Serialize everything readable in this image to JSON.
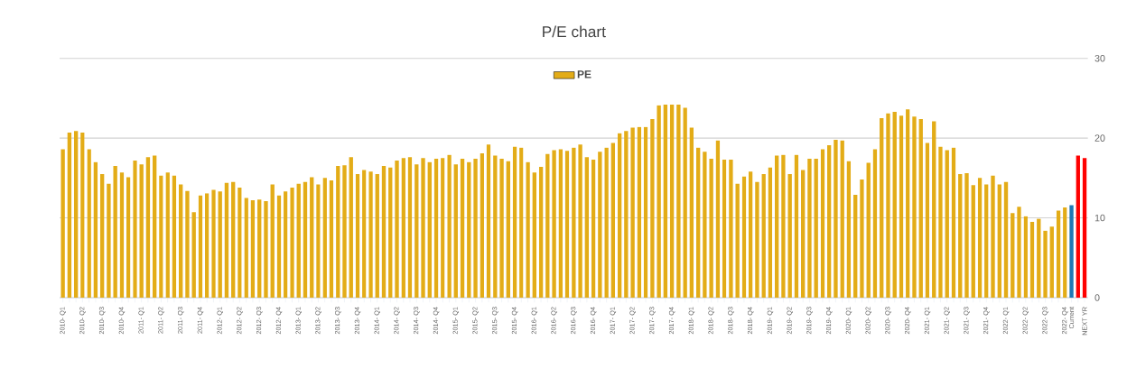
{
  "chart_data": {
    "type": "bar",
    "title": "P/E chart",
    "legend": "top",
    "grid": "y",
    "ylim": [
      0,
      30
    ],
    "yticks": [
      0,
      10,
      20,
      30
    ],
    "categories": [
      "2010- Q1",
      null,
      null,
      "2010- Q2",
      null,
      null,
      "2010- Q3",
      null,
      null,
      "2010- Q4",
      null,
      null,
      "2011- Q1",
      null,
      null,
      "2011- Q2",
      null,
      null,
      "2011- Q3",
      null,
      null,
      "2011- Q4",
      null,
      null,
      "2012- Q1",
      null,
      null,
      "2012- Q2",
      null,
      null,
      "2012- Q3",
      null,
      null,
      "2012- Q4",
      null,
      null,
      "2013- Q1",
      null,
      null,
      "2013- Q2",
      null,
      null,
      "2013- Q3",
      null,
      null,
      "2013- Q4",
      null,
      null,
      "2014- Q1",
      null,
      null,
      "2014- Q2",
      null,
      null,
      "2014- Q3",
      null,
      null,
      "2014- Q4",
      null,
      null,
      "2015- Q1",
      null,
      null,
      "2015- Q2",
      null,
      null,
      "2015- Q3",
      null,
      null,
      "2015- Q4",
      null,
      null,
      "2016- Q1",
      null,
      null,
      "2016- Q2",
      null,
      null,
      "2016- Q3",
      null,
      null,
      "2016- Q4",
      null,
      null,
      "2017- Q1",
      null,
      null,
      "2017- Q2",
      null,
      null,
      "2017- Q3",
      null,
      null,
      "2017- Q4",
      null,
      null,
      "2018- Q1",
      null,
      null,
      "2018- Q2",
      null,
      null,
      "2018- Q3",
      null,
      null,
      "2018- Q4",
      null,
      null,
      "2019- Q1",
      null,
      null,
      "2019- Q2",
      null,
      null,
      "2019- Q3",
      null,
      null,
      "2019- Q4",
      null,
      null,
      "2020- Q1",
      null,
      null,
      "2020- Q2",
      null,
      null,
      "2020- Q3",
      null,
      null,
      "2020- Q4",
      null,
      null,
      "2021- Q1",
      null,
      null,
      "2021- Q2",
      null,
      null,
      "2021- Q3",
      null,
      null,
      "2021- Q4",
      null,
      null,
      "2022- Q1",
      null,
      null,
      "2022- Q2",
      null,
      null,
      "2022- Q3",
      null,
      null,
      "2022- Q4",
      "Current",
      null,
      "NEXT YR"
    ],
    "series": [
      {
        "name": "PE",
        "color": "#e3ac17",
        "values": [
          18.6,
          20.7,
          20.9,
          20.7,
          18.6,
          17.0,
          15.5,
          14.3,
          16.5,
          15.7,
          15.1,
          17.2,
          16.7,
          17.6,
          17.8,
          15.3,
          15.7,
          15.3,
          14.2,
          13.4,
          10.7,
          12.8,
          13.1,
          13.5,
          13.3,
          14.4,
          14.5,
          13.8,
          12.5,
          12.2,
          12.3,
          12.1,
          14.2,
          12.8,
          13.3,
          13.8,
          14.3,
          14.5,
          15.1,
          14.2,
          15.0,
          14.7,
          16.5,
          16.6,
          17.6,
          15.5,
          16.0,
          15.8,
          15.5,
          16.5,
          16.3,
          17.2,
          17.5,
          17.6,
          16.7,
          17.5,
          17.0,
          17.4,
          17.5,
          17.9,
          16.7,
          17.4,
          17.0,
          17.4,
          18.1,
          19.2,
          17.8,
          17.4,
          17.1,
          18.9,
          18.8,
          17.0,
          15.7,
          16.4,
          18.0,
          18.5,
          18.6,
          18.4,
          18.8,
          19.2,
          17.6,
          17.3,
          18.3,
          18.8,
          19.4,
          20.6,
          20.9,
          21.3,
          21.4,
          21.4,
          22.4,
          24.1,
          24.2,
          24.2,
          24.2,
          23.8,
          21.3,
          18.8,
          18.3,
          17.4,
          19.7,
          17.3,
          17.3,
          14.3,
          15.2,
          15.8,
          14.5,
          15.5,
          16.3,
          17.8,
          17.9,
          15.5,
          17.9,
          16.0,
          17.4,
          17.4,
          18.6,
          19.1,
          19.8,
          19.7,
          17.1,
          12.9,
          14.8,
          16.9,
          18.6,
          22.5,
          23.1,
          23.3,
          22.8,
          23.6,
          22.7,
          22.4,
          19.4,
          22.1,
          18.9,
          18.5,
          18.8,
          15.5,
          15.6,
          14.1,
          15.0,
          14.2,
          15.3,
          14.2,
          14.5,
          10.6,
          11.4,
          10.2,
          9.5,
          9.9,
          8.4,
          8.9,
          10.9,
          11.3,
          11.6,
          17.8,
          17.5
        ],
        "colors": [
          "#e3ac17",
          "#e3ac17",
          "#e3ac17",
          "#e3ac17",
          "#e3ac17",
          "#e3ac17",
          "#e3ac17",
          "#e3ac17",
          "#e3ac17",
          "#e3ac17",
          "#e3ac17",
          "#e3ac17",
          "#e3ac17",
          "#e3ac17",
          "#e3ac17",
          "#e3ac17",
          "#e3ac17",
          "#e3ac17",
          "#e3ac17",
          "#e3ac17",
          "#e3ac17",
          "#e3ac17",
          "#e3ac17",
          "#e3ac17",
          "#e3ac17",
          "#e3ac17",
          "#e3ac17",
          "#e3ac17",
          "#e3ac17",
          "#e3ac17",
          "#e3ac17",
          "#e3ac17",
          "#e3ac17",
          "#e3ac17",
          "#e3ac17",
          "#e3ac17",
          "#e3ac17",
          "#e3ac17",
          "#e3ac17",
          "#e3ac17",
          "#e3ac17",
          "#e3ac17",
          "#e3ac17",
          "#e3ac17",
          "#e3ac17",
          "#e3ac17",
          "#e3ac17",
          "#e3ac17",
          "#e3ac17",
          "#e3ac17",
          "#e3ac17",
          "#e3ac17",
          "#e3ac17",
          "#e3ac17",
          "#e3ac17",
          "#e3ac17",
          "#e3ac17",
          "#e3ac17",
          "#e3ac17",
          "#e3ac17",
          "#e3ac17",
          "#e3ac17",
          "#e3ac17",
          "#e3ac17",
          "#e3ac17",
          "#e3ac17",
          "#e3ac17",
          "#e3ac17",
          "#e3ac17",
          "#e3ac17",
          "#e3ac17",
          "#e3ac17",
          "#e3ac17",
          "#e3ac17",
          "#e3ac17",
          "#e3ac17",
          "#e3ac17",
          "#e3ac17",
          "#e3ac17",
          "#e3ac17",
          "#e3ac17",
          "#e3ac17",
          "#e3ac17",
          "#e3ac17",
          "#e3ac17",
          "#e3ac17",
          "#e3ac17",
          "#e3ac17",
          "#e3ac17",
          "#e3ac17",
          "#e3ac17",
          "#e3ac17",
          "#e3ac17",
          "#e3ac17",
          "#e3ac17",
          "#e3ac17",
          "#e3ac17",
          "#e3ac17",
          "#e3ac17",
          "#e3ac17",
          "#e3ac17",
          "#e3ac17",
          "#e3ac17",
          "#e3ac17",
          "#e3ac17",
          "#e3ac17",
          "#e3ac17",
          "#e3ac17",
          "#e3ac17",
          "#e3ac17",
          "#e3ac17",
          "#e3ac17",
          "#e3ac17",
          "#e3ac17",
          "#e3ac17",
          "#e3ac17",
          "#e3ac17",
          "#e3ac17",
          "#e3ac17",
          "#e3ac17",
          "#e3ac17",
          "#e3ac17",
          "#e3ac17",
          "#e3ac17",
          "#e3ac17",
          "#e3ac17",
          "#e3ac17",
          "#e3ac17",
          "#e3ac17",
          "#e3ac17",
          "#e3ac17",
          "#e3ac17",
          "#e3ac17",
          "#e3ac17",
          "#e3ac17",
          "#e3ac17",
          "#e3ac17",
          "#e3ac17",
          "#e3ac17",
          "#e3ac17",
          "#e3ac17",
          "#e3ac17",
          "#e3ac17",
          "#e3ac17",
          "#e3ac17",
          "#e3ac17",
          "#e3ac17",
          "#e3ac17",
          "#e3ac17",
          "#e3ac17",
          "#e3ac17",
          "#e3ac17",
          "#e3ac17",
          "#e3ac17",
          "#1f78b4",
          "#ff0000",
          "#ff0000"
        ]
      }
    ]
  }
}
